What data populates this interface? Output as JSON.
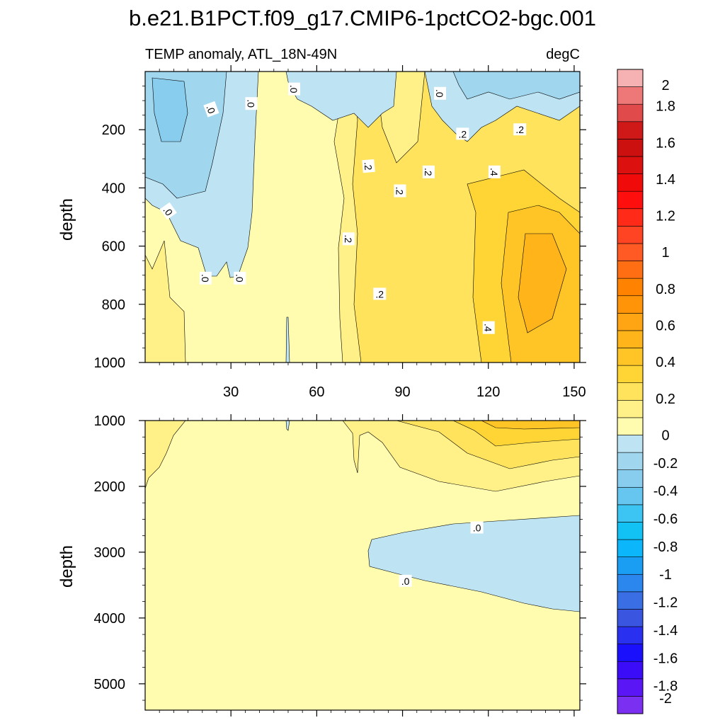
{
  "chart_data": {
    "type": "heatmap",
    "title": "b.e21.B1PCT.f09_g17.CMIP6-1pctCO2-bgc.001",
    "subtitle_left": "TEMP anomaly, ATL_18N-49N",
    "subtitle_right": "degC",
    "xlim": [
      0,
      152
    ],
    "x_ticks": [
      30,
      60,
      90,
      120,
      150
    ],
    "x_tick_labels": [
      "30",
      "60",
      "90",
      "120",
      "150"
    ],
    "panels": [
      {
        "name": "upper",
        "ylabel": "depth",
        "ylim": [
          0,
          1000
        ],
        "y_ticks": [
          200,
          400,
          600,
          800,
          1000
        ],
        "y_tick_labels": [
          "200",
          "400",
          "600",
          "800",
          "1000"
        ],
        "contour_labels": [
          {
            "text": ".0",
            "x": 23,
            "y": 130,
            "rot": 70
          },
          {
            "text": ".0",
            "x": 37,
            "y": 110,
            "rot": 90
          },
          {
            "text": ".0",
            "x": 52,
            "y": 60,
            "rot": 90
          },
          {
            "text": ".0",
            "x": 103,
            "y": 75,
            "rot": 90
          },
          {
            "text": ".0",
            "x": 8,
            "y": 480,
            "rot": 55
          },
          {
            "text": ".0",
            "x": 21,
            "y": 710,
            "rot": 90
          },
          {
            "text": ".0",
            "x": 33,
            "y": 710,
            "rot": 90
          },
          {
            "text": ".2",
            "x": 78,
            "y": 325,
            "rot": 85
          },
          {
            "text": ".2",
            "x": 99,
            "y": 345,
            "rot": 90
          },
          {
            "text": ".2",
            "x": 89,
            "y": 410,
            "rot": 90
          },
          {
            "text": ".2",
            "x": 71,
            "y": 575,
            "rot": 90
          },
          {
            "text": ".2",
            "x": 82,
            "y": 765,
            "rot": 0
          },
          {
            "text": ".2",
            "x": 111,
            "y": 215,
            "rot": 0
          },
          {
            "text": ".2",
            "x": 131,
            "y": 200,
            "rot": 0
          },
          {
            "text": ".4",
            "x": 122,
            "y": 345,
            "rot": 90
          },
          {
            "text": ".4",
            "x": 120,
            "y": 880,
            "rot": 90
          }
        ]
      },
      {
        "name": "lower",
        "ylabel": "depth",
        "ylim": [
          1000,
          5400
        ],
        "y_ticks": [
          1000,
          2000,
          3000,
          4000,
          5000
        ],
        "y_tick_labels": [
          "1000",
          "2000",
          "3000",
          "4000",
          "5000"
        ],
        "contour_labels": [
          {
            "text": ".0",
            "x": 116,
            "y": 2630,
            "rot": 0
          },
          {
            "text": ".0",
            "x": 91,
            "y": 3440,
            "rot": 0
          }
        ]
      }
    ],
    "colorbar": {
      "levels": [
        -2,
        -1.8,
        -1.6,
        -1.4,
        -1.2,
        -1,
        -0.8,
        -0.6,
        -0.4,
        -0.2,
        0,
        0.2,
        0.4,
        0.6,
        0.8,
        1,
        1.2,
        1.4,
        1.6,
        1.8,
        2
      ],
      "labels": [
        "-2",
        "-1.8",
        "-1.6",
        "-1.4",
        "-1.2",
        "-1",
        "-0.8",
        "-0.6",
        "-0.4",
        "-0.2",
        "0",
        "0.2",
        "0.4",
        "0.6",
        "0.8",
        "1",
        "1.2",
        "1.4",
        "1.6",
        "1.8",
        "2"
      ],
      "colors_bottom_to_top": [
        "#7b2ff0",
        "#5a16f4",
        "#3a0cf8",
        "#1b10fc",
        "#2a30f0",
        "#3a55e0",
        "#3a6ee4",
        "#2b86ee",
        "#1a9ef4",
        "#0cb6fa",
        "#12c2f5",
        "#3cc4f2",
        "#66c6f0",
        "#88cdee",
        "#a0d7ef",
        "#bee3f3",
        "#fffcb0",
        "#fff088",
        "#ffe35c",
        "#ffd535",
        "#ffc425",
        "#ffb41a",
        "#ffa412",
        "#ff9408",
        "#ff8200",
        "#ff6e12",
        "#ff5a24",
        "#ff4424",
        "#ff2a18",
        "#ff0e0e",
        "#f00a0a",
        "#dd1010",
        "#cc1010",
        "#cf1818",
        "#e04a4a",
        "#ee7878",
        "#f6b2b2"
      ]
    }
  }
}
